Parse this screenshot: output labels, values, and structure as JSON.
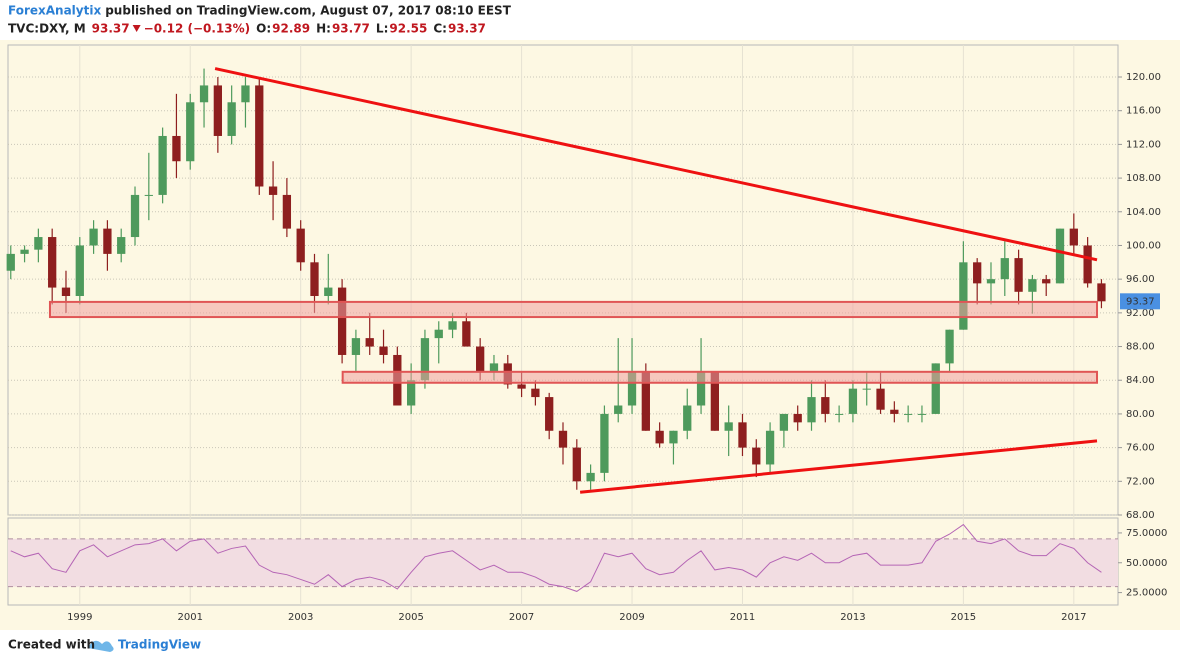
{
  "header": {
    "author": "ForexAnalytix",
    "published": "published on TradingView.com, August 07, 2017 08:10 EEST",
    "symbol": "TVC:DXY, M",
    "last": "93.37",
    "change": "−0.12 (−0.13%)",
    "ohlc": [
      {
        "label": "O:",
        "value": "92.89"
      },
      {
        "label": "H:",
        "value": "93.77"
      },
      {
        "label": "L:",
        "value": "92.55"
      },
      {
        "label": "C:",
        "value": "93.37"
      }
    ]
  },
  "footer": {
    "created": "Created with",
    "brand": "TradingView"
  },
  "chart_data": [
    {
      "type": "candlestick",
      "x": [
        1997.75,
        1998,
        1998.25,
        1998.5,
        1998.75,
        1999,
        1999.25,
        1999.5,
        1999.75,
        2000,
        2000.25,
        2000.5,
        2000.75,
        2001,
        2001.25,
        2001.5,
        2001.75,
        2002,
        2002.25,
        2002.5,
        2002.75,
        2003,
        2003.25,
        2003.5,
        2003.75,
        2004,
        2004.25,
        2004.5,
        2004.75,
        2005,
        2005.25,
        2005.5,
        2005.75,
        2006,
        2006.25,
        2006.5,
        2006.75,
        2007,
        2007.25,
        2007.5,
        2007.75,
        2008,
        2008.25,
        2008.5,
        2008.75,
        2009,
        2009.25,
        2009.5,
        2009.75,
        2010,
        2010.25,
        2010.5,
        2010.75,
        2011,
        2011.25,
        2011.5,
        2011.75,
        2012,
        2012.25,
        2012.5,
        2012.75,
        2013,
        2013.25,
        2013.5,
        2013.75,
        2014,
        2014.25,
        2014.5,
        2014.75,
        2015,
        2015.25,
        2015.5,
        2015.75,
        2016,
        2016.25,
        2016.5,
        2016.75,
        2017,
        2017.25,
        2017.5
      ],
      "open": [
        97,
        99,
        99.5,
        101,
        95,
        94,
        100,
        102,
        99,
        101,
        106,
        106,
        113,
        110,
        117,
        119,
        113,
        117,
        119,
        107,
        106,
        102,
        98,
        94,
        95,
        87,
        89,
        88,
        87,
        81,
        84,
        89,
        90,
        91,
        88,
        85,
        86,
        83.5,
        83,
        82,
        78,
        76,
        72,
        73,
        80,
        81,
        85,
        78,
        76.5,
        78,
        81,
        85,
        78,
        79,
        76,
        74,
        78,
        80,
        79,
        82,
        80,
        80,
        83,
        83,
        80.5,
        80,
        80,
        80,
        86,
        90,
        98,
        95.5,
        96,
        98.5,
        94.5,
        96,
        95.5,
        102,
        100,
        95.5
      ],
      "high": [
        100,
        100,
        102,
        102,
        97,
        101,
        103,
        103,
        102,
        107,
        111,
        114,
        118,
        118,
        121,
        120,
        119,
        120,
        120,
        110,
        108,
        103,
        99,
        99,
        96,
        90,
        92,
        90,
        88,
        86,
        90,
        91,
        92,
        92,
        89,
        87,
        87,
        85,
        84,
        82.5,
        79,
        77,
        74,
        81,
        89,
        89,
        86,
        79,
        78,
        83,
        89,
        85,
        81,
        80,
        77,
        79,
        80,
        81,
        84,
        84,
        81,
        84,
        85,
        85,
        81.5,
        81,
        81,
        86,
        90,
        100.5,
        98.5,
        98,
        100.5,
        99.5,
        96.5,
        96.5,
        102,
        103.8,
        101,
        96
      ],
      "low": [
        96,
        98,
        98,
        93,
        92,
        93,
        99,
        97,
        98,
        100,
        103,
        105,
        108,
        109,
        114,
        111,
        112,
        114,
        106,
        103,
        101,
        97,
        92,
        93,
        86,
        85,
        87,
        86,
        81,
        80,
        83,
        86,
        89,
        88,
        84,
        84,
        83,
        82,
        81,
        77,
        74,
        71,
        71,
        72,
        79,
        80,
        78,
        76,
        74,
        77,
        80,
        78,
        75,
        75,
        72.5,
        73,
        76,
        78,
        78,
        79,
        79,
        79,
        81,
        80,
        79,
        79,
        79,
        80,
        85,
        90,
        93,
        93,
        94,
        93,
        91.9,
        94,
        95.5,
        99,
        95,
        92.55
      ],
      "close": [
        99,
        99.5,
        101,
        95,
        94,
        100,
        102,
        99,
        101,
        106,
        106,
        113,
        110,
        117,
        119,
        113,
        117,
        119,
        107,
        106,
        102,
        98,
        94,
        95,
        87,
        89,
        88,
        87,
        81,
        84,
        89,
        90,
        91,
        88,
        85,
        86,
        83.5,
        83,
        82,
        78,
        76,
        72,
        73,
        80,
        81,
        85,
        78,
        76.5,
        78,
        81,
        85,
        78,
        79,
        76,
        74,
        78,
        80,
        79,
        82,
        80,
        80,
        83,
        83,
        80.5,
        80,
        80,
        80,
        86,
        90,
        98,
        95.5,
        96,
        98.5,
        94.5,
        96,
        95.5,
        102,
        100,
        95.5,
        93.37
      ],
      "last_label": "93.37",
      "up_color": "#4e9a5c",
      "down_color": "#8e1f1f",
      "xlim": [
        1997.7,
        2017.8
      ],
      "xticks": [
        1999,
        2001,
        2003,
        2005,
        2007,
        2009,
        2011,
        2013,
        2015,
        2017
      ],
      "ylim": [
        68,
        123.8
      ],
      "yticks": [
        {
          "value": 68,
          "label": "68.00"
        },
        {
          "value": 72,
          "label": "72.00"
        },
        {
          "value": 76,
          "label": "76.00"
        },
        {
          "value": 80,
          "label": "80.00"
        },
        {
          "value": 84,
          "label": "84.00"
        },
        {
          "value": 88,
          "label": "88.00"
        },
        {
          "value": 92,
          "label": "92.00"
        },
        {
          "value": 96,
          "label": "96.00"
        },
        {
          "value": 100,
          "label": "100.00"
        },
        {
          "value": 104,
          "label": "104.00"
        },
        {
          "value": 108,
          "label": "108.00"
        },
        {
          "value": 112,
          "label": "112.00"
        },
        {
          "value": 116,
          "label": "116.00"
        },
        {
          "value": 120,
          "label": "120.00"
        }
      ],
      "grid": true,
      "zones": [
        {
          "x": [
            1998.46,
            2017.42
          ],
          "y": [
            91.5,
            93.3
          ]
        },
        {
          "x": [
            2003.76,
            2017.42
          ],
          "y": [
            83.7,
            85
          ]
        }
      ],
      "zone_color": "#f0a0a0",
      "trendlines": [
        {
          "x": [
            2001.45,
            2017.42
          ],
          "y": [
            121,
            98.3
          ]
        },
        {
          "x": [
            2008.06,
            2017.42
          ],
          "y": [
            70.7,
            76.8
          ]
        }
      ],
      "trend_color": "#ee1111"
    },
    {
      "type": "line",
      "x": [
        1997.75,
        1998,
        1998.25,
        1998.5,
        1998.75,
        1999,
        1999.25,
        1999.5,
        1999.75,
        2000,
        2000.25,
        2000.5,
        2000.75,
        2001,
        2001.25,
        2001.5,
        2001.75,
        2002,
        2002.25,
        2002.5,
        2002.75,
        2003,
        2003.25,
        2003.5,
        2003.75,
        2004,
        2004.25,
        2004.5,
        2004.75,
        2005,
        2005.25,
        2005.5,
        2005.75,
        2006,
        2006.25,
        2006.5,
        2006.75,
        2007,
        2007.25,
        2007.5,
        2007.75,
        2008,
        2008.25,
        2008.5,
        2008.75,
        2009,
        2009.25,
        2009.5,
        2009.75,
        2010,
        2010.25,
        2010.5,
        2010.75,
        2011,
        2011.25,
        2011.5,
        2011.75,
        2012,
        2012.25,
        2012.5,
        2012.75,
        2013,
        2013.25,
        2013.5,
        2013.75,
        2014,
        2014.25,
        2014.5,
        2014.75,
        2015,
        2015.25,
        2015.5,
        2015.75,
        2016,
        2016.25,
        2016.5,
        2016.75,
        2017,
        2017.25,
        2017.5
      ],
      "values": [
        60,
        55,
        58,
        45,
        42,
        60,
        65,
        55,
        60,
        65,
        66,
        70,
        60,
        68,
        70,
        58,
        62,
        64,
        48,
        42,
        40,
        36,
        32,
        40,
        30,
        36,
        38,
        35,
        28,
        42,
        55,
        58,
        60,
        52,
        44,
        48,
        42,
        42,
        38,
        32,
        30,
        26,
        34,
        58,
        55,
        58,
        45,
        40,
        42,
        52,
        60,
        44,
        46,
        44,
        38,
        50,
        55,
        52,
        58,
        50,
        50,
        56,
        58,
        48,
        48,
        48,
        50,
        68,
        74,
        82,
        68,
        66,
        70,
        60,
        56,
        56,
        66,
        62,
        50,
        42
      ],
      "color": "#b565b5",
      "bands": [
        30,
        70
      ],
      "band_color": "#f2dde2",
      "xlim": [
        1997.7,
        2017.8
      ],
      "ylim": [
        14.6,
        87.5
      ],
      "yticks": [
        {
          "value": 25,
          "label": "25.0000"
        },
        {
          "value": 50,
          "label": "50.0000"
        },
        {
          "value": 75,
          "label": "75.0000"
        }
      ]
    }
  ]
}
